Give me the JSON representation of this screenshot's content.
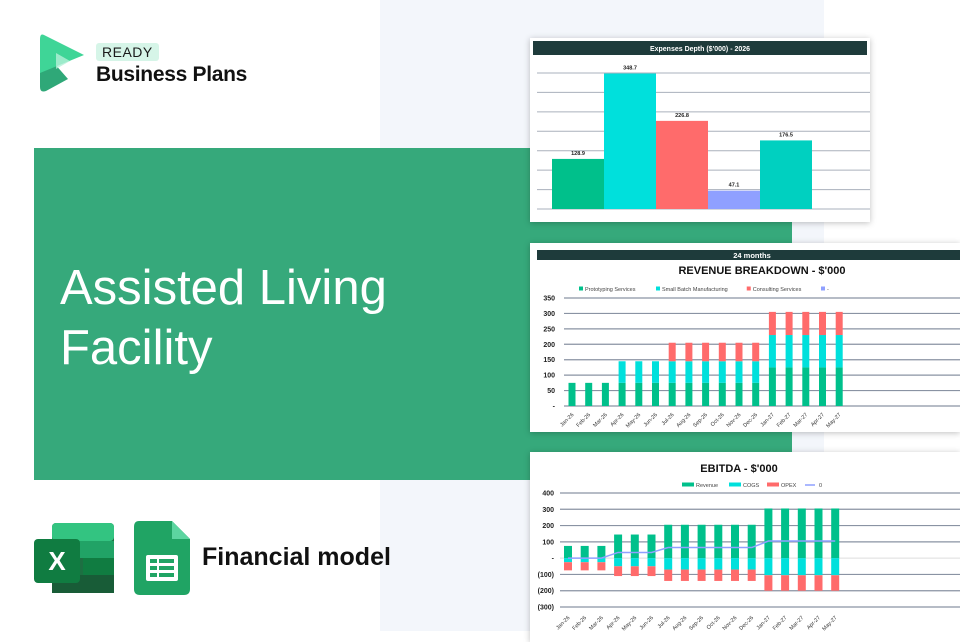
{
  "brand": {
    "badge": "READY",
    "name": "Business Plans"
  },
  "hero": {
    "title": "Assisted Living Facility"
  },
  "footer": {
    "label": "Financial model",
    "icons": [
      "excel-icon",
      "google-sheets-icon"
    ]
  },
  "colors": {
    "banner": "#36a97b",
    "header": "#1e3b3b",
    "green": "#00c08b",
    "cyan": "#00e0dc",
    "red": "#ff6b6b",
    "purple": "#8fa0ff",
    "teal": "#00d0c0"
  },
  "chart_data": [
    {
      "type": "bar",
      "title": "Expenses Depth ($'000) - 2026",
      "values": [
        128.9,
        348.7,
        226.8,
        47.1,
        176.5
      ],
      "labels": [
        "128.9",
        "348.7",
        "226.8",
        "47.1",
        "176.5"
      ],
      "colors": [
        "#00c08b",
        "#00e0dc",
        "#ff6b6b",
        "#8fa0ff",
        "#00d0c0"
      ],
      "ylim": [
        0,
        350
      ],
      "grid": true
    },
    {
      "type": "bar",
      "stacked": true,
      "header": "24 months",
      "title": "REVENUE BREAKDOWN - $'000",
      "ylim": [
        0,
        350
      ],
      "yticks": [
        "-",
        "50",
        "100",
        "150",
        "200",
        "250",
        "300",
        "350"
      ],
      "categories": [
        "Jan-26",
        "Feb-26",
        "Mar-26",
        "Apr-26",
        "May-26",
        "Jun-26",
        "Jul-26",
        "Aug-26",
        "Sep-26",
        "Oct-26",
        "Nov-26",
        "Dec-26",
        "Jan-27",
        "Feb-27",
        "Mar-27",
        "Apr-27",
        "May-27"
      ],
      "series": [
        {
          "name": "Prototyping Services",
          "color": "#00c08b",
          "values": [
            75,
            75,
            75,
            75,
            75,
            75,
            75,
            75,
            75,
            75,
            75,
            75,
            125,
            125,
            125,
            125,
            125
          ]
        },
        {
          "name": "Small Batch Manufacturing",
          "color": "#00e0dc",
          "values": [
            0,
            0,
            0,
            70,
            70,
            70,
            70,
            70,
            70,
            70,
            70,
            70,
            105,
            105,
            105,
            105,
            105
          ]
        },
        {
          "name": "Consulting Services",
          "color": "#ff6b6b",
          "values": [
            0,
            0,
            0,
            0,
            0,
            0,
            60,
            60,
            60,
            60,
            60,
            60,
            75,
            75,
            75,
            75,
            75
          ]
        },
        {
          "name": "-",
          "color": "#8fa0ff",
          "values": [
            0,
            0,
            0,
            0,
            0,
            0,
            0,
            0,
            0,
            0,
            0,
            0,
            0,
            0,
            0,
            0,
            0
          ]
        }
      ],
      "legend": "top"
    },
    {
      "type": "bar",
      "stacked": true,
      "title": "EBITDA - $'000",
      "ylim": [
        -300,
        400
      ],
      "yticks": [
        "(300)",
        "(200)",
        "(100)",
        "-",
        "100",
        "200",
        "300",
        "400"
      ],
      "categories": [
        "Jan-26",
        "Feb-26",
        "Mar-26",
        "Apr-26",
        "May-26",
        "Jun-26",
        "Jul-26",
        "Aug-26",
        "Sep-26",
        "Oct-26",
        "Nov-26",
        "Dec-26",
        "Jan-27",
        "Feb-27",
        "Mar-27",
        "Apr-27",
        "May-27"
      ],
      "series": [
        {
          "name": "Revenue",
          "color": "#00c08b",
          "values": [
            75,
            75,
            75,
            145,
            145,
            145,
            205,
            205,
            205,
            205,
            205,
            205,
            305,
            305,
            305,
            305,
            305
          ]
        },
        {
          "name": "COGS",
          "color": "#00e0dc",
          "values": [
            -25,
            -25,
            -25,
            -50,
            -50,
            -50,
            -70,
            -70,
            -70,
            -70,
            -70,
            -70,
            -105,
            -105,
            -105,
            -105,
            -105
          ]
        },
        {
          "name": "OPEX",
          "color": "#ff6b6b",
          "values": [
            -50,
            -50,
            -50,
            -60,
            -60,
            -60,
            -70,
            -70,
            -70,
            -70,
            -70,
            -70,
            -95,
            -95,
            -95,
            -95,
            -95
          ]
        },
        {
          "name": "0",
          "type": "line",
          "color": "#8fa0ff",
          "values": [
            0,
            0,
            0,
            35,
            35,
            35,
            65,
            65,
            65,
            65,
            65,
            65,
            105,
            105,
            105,
            105,
            105
          ]
        }
      ],
      "legend": "top"
    }
  ]
}
